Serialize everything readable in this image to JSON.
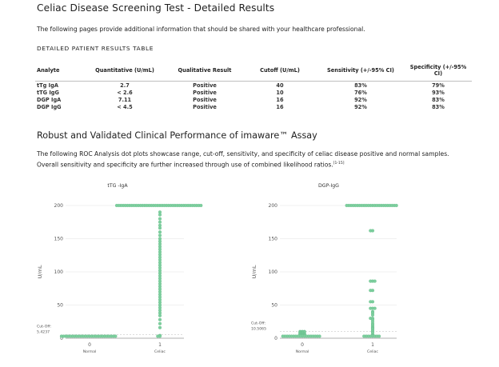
{
  "page": {
    "title": "Celiac Disease Screening Test - Detailed Results",
    "intro": "The following pages provide additional information that should be shared with your healthcare professional."
  },
  "results_table": {
    "title": "DETAILED PATIENT RESULTS TABLE",
    "headers": [
      "Analyte",
      "Quantitative (U/mL)",
      "Qualitative Result",
      "Cutoff (U/mL)",
      "Sensitivity (+/-95% CI)",
      "Specificity (+/-95% CI)"
    ],
    "rows": [
      [
        "tTg IgA",
        "2.7",
        "Positive",
        "40",
        "83%",
        "79%"
      ],
      [
        "tTG IgG",
        "< 2.6",
        "Positive",
        "10",
        "76%",
        "93%"
      ],
      [
        "DGP IgA",
        "7.11",
        "Positive",
        "16",
        "92%",
        "83%"
      ],
      [
        "DGP IgG",
        "< 4.5",
        "Positive",
        "16",
        "92%",
        "83%"
      ]
    ]
  },
  "section": {
    "title": "Robust and Validated Clinical Performance of imaware™ Assay",
    "text": "The following ROC Analysis dot plots showcase range, cut-off, sensitivity, and specificity of celiac disease positive and normal samples. Overall sensitivity and specificity are further increased through use of combined likelihood ratios.",
    "ref": "[1-15]"
  },
  "chart_data": [
    {
      "type": "scatter",
      "title": "tTG -IgA",
      "ylabel": "U/mL",
      "ylim": [
        0,
        200
      ],
      "yticks": [
        0,
        50,
        100,
        150,
        200
      ],
      "x_ticks": [
        "0",
        "1"
      ],
      "categories": [
        "Normal",
        "Celiac"
      ],
      "cutoff_label": "Cut-Off:",
      "cutoff_value": "5.4237",
      "cutoff": 5.4237,
      "series": [
        {
          "values": [
            3,
            3,
            3,
            3,
            3,
            3,
            3,
            3,
            3,
            3,
            3,
            3,
            3,
            3,
            3,
            3,
            3,
            3,
            3,
            3,
            3,
            3,
            3,
            3,
            3,
            3
          ]
        },
        {
          "values": [
            200,
            200,
            200,
            200,
            200,
            200,
            200,
            200,
            200,
            200,
            200,
            200,
            200,
            200,
            200,
            200,
            200,
            200,
            200,
            200,
            200,
            200,
            200,
            200,
            200,
            200,
            200,
            200,
            200,
            200,
            200,
            200,
            200,
            200,
            200,
            200,
            200,
            200,
            200,
            200,
            190,
            186,
            180,
            175,
            170,
            166,
            160,
            155,
            150,
            146,
            142,
            138,
            134,
            130,
            126,
            122,
            118,
            114,
            110,
            106,
            102,
            98,
            94,
            90,
            86,
            82,
            78,
            74,
            70,
            66,
            62,
            58,
            54,
            50,
            46,
            42,
            38,
            34,
            28,
            22,
            16,
            4,
            3,
            3
          ]
        }
      ]
    },
    {
      "type": "scatter",
      "title": "DGP-IgG",
      "ylabel": "U/mL",
      "ylim": [
        0,
        200
      ],
      "yticks": [
        0,
        50,
        100,
        150,
        200
      ],
      "x_ticks": [
        "0",
        "1"
      ],
      "categories": [
        "Normal",
        "Celiac"
      ],
      "cutoff_label": "Cut-Off:",
      "cutoff_value": "10.5065",
      "cutoff": 10.5065,
      "series": [
        {
          "values": [
            10,
            10,
            10,
            9,
            9,
            9,
            8,
            8,
            7,
            7,
            7,
            6,
            6,
            6,
            5,
            5,
            5,
            4,
            4,
            4,
            3,
            3,
            3,
            3,
            3,
            3,
            3,
            3,
            3,
            3,
            3,
            3,
            3,
            3,
            3,
            3,
            3,
            3
          ]
        },
        {
          "values": [
            200,
            200,
            200,
            200,
            200,
            200,
            200,
            200,
            200,
            200,
            200,
            200,
            200,
            200,
            200,
            200,
            200,
            200,
            200,
            200,
            200,
            200,
            200,
            200,
            162,
            162,
            86,
            86,
            86,
            72,
            72,
            55,
            55,
            45,
            45,
            45,
            40,
            38,
            35,
            30,
            30,
            28,
            25,
            22,
            20,
            18,
            16,
            15,
            14,
            12,
            10,
            8,
            5,
            4,
            3,
            3,
            3,
            3,
            3,
            3,
            3,
            3
          ]
        }
      ]
    }
  ]
}
